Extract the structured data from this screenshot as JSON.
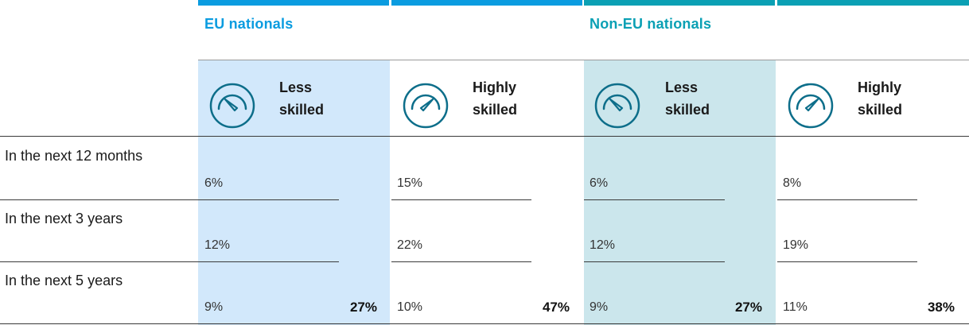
{
  "colors": {
    "accent_blue": "#0a9ce0",
    "accent_teal": "#0aa0b4",
    "icon_stroke": "#0d6e8a",
    "col_bg_eu": "#d2e8fb",
    "col_bg_noneu": "#cbe6ec"
  },
  "chart_data": {
    "type": "table",
    "groups": [
      {
        "name": "EU nationals",
        "categories": [
          {
            "label_line1": "Less",
            "label_line2": "skilled",
            "icon": "gauge-low-icon",
            "values": [
              "6%",
              "12%",
              "9%"
            ],
            "total": "27%"
          },
          {
            "label_line1": "Highly",
            "label_line2": "skilled",
            "icon": "gauge-high-icon",
            "values": [
              "15%",
              "22%",
              "10%"
            ],
            "total": "47%"
          }
        ]
      },
      {
        "name": "Non-EU nationals",
        "categories": [
          {
            "label_line1": "Less",
            "label_line2": "skilled",
            "icon": "gauge-low-icon",
            "values": [
              "6%",
              "12%",
              "9%"
            ],
            "total": "27%"
          },
          {
            "label_line1": "Highly",
            "label_line2": "skilled",
            "icon": "gauge-high-icon",
            "values": [
              "8%",
              "19%",
              "11%"
            ],
            "total": "38%"
          }
        ]
      }
    ],
    "rows": [
      "In the next 12 months",
      "In the next 3 years",
      "In the next 5 years"
    ]
  }
}
